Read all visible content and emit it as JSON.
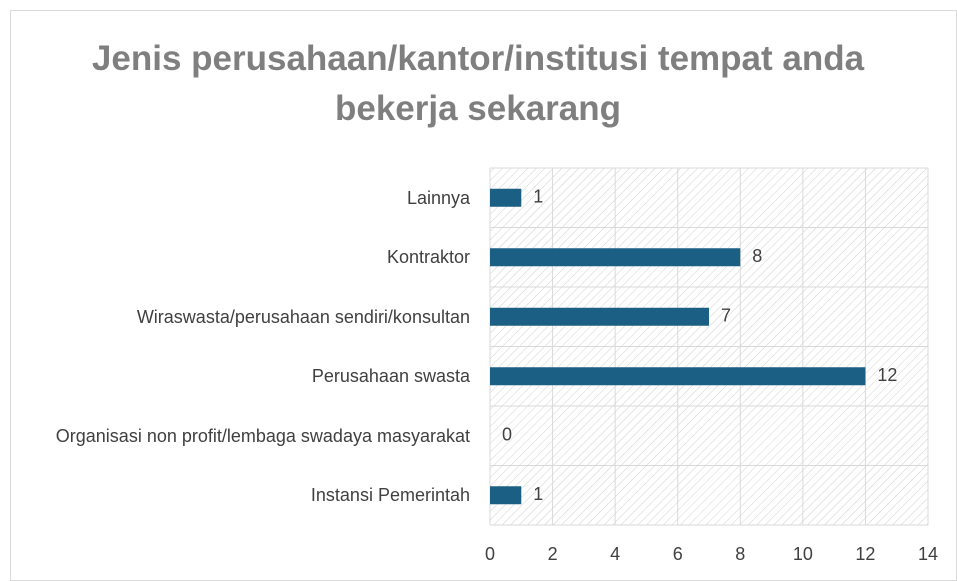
{
  "chart_data": {
    "type": "bar",
    "orientation": "horizontal",
    "title": "Jenis perusahaan/kantor/institusi tempat anda bekerja sekarang",
    "categories": [
      "Lainnya",
      "Kontraktor",
      "Wiraswasta/perusahaan sendiri/konsultan",
      "Perusahaan swasta",
      "Organisasi non profit/lembaga swadaya masyarakat",
      "Instansi Pemerintah"
    ],
    "values": [
      1,
      8,
      7,
      12,
      0,
      1
    ],
    "color": "#1b5f84",
    "xlim": [
      0,
      14
    ],
    "xticks": [
      0,
      2,
      4,
      6,
      8,
      10,
      12,
      14
    ],
    "grid": true
  }
}
